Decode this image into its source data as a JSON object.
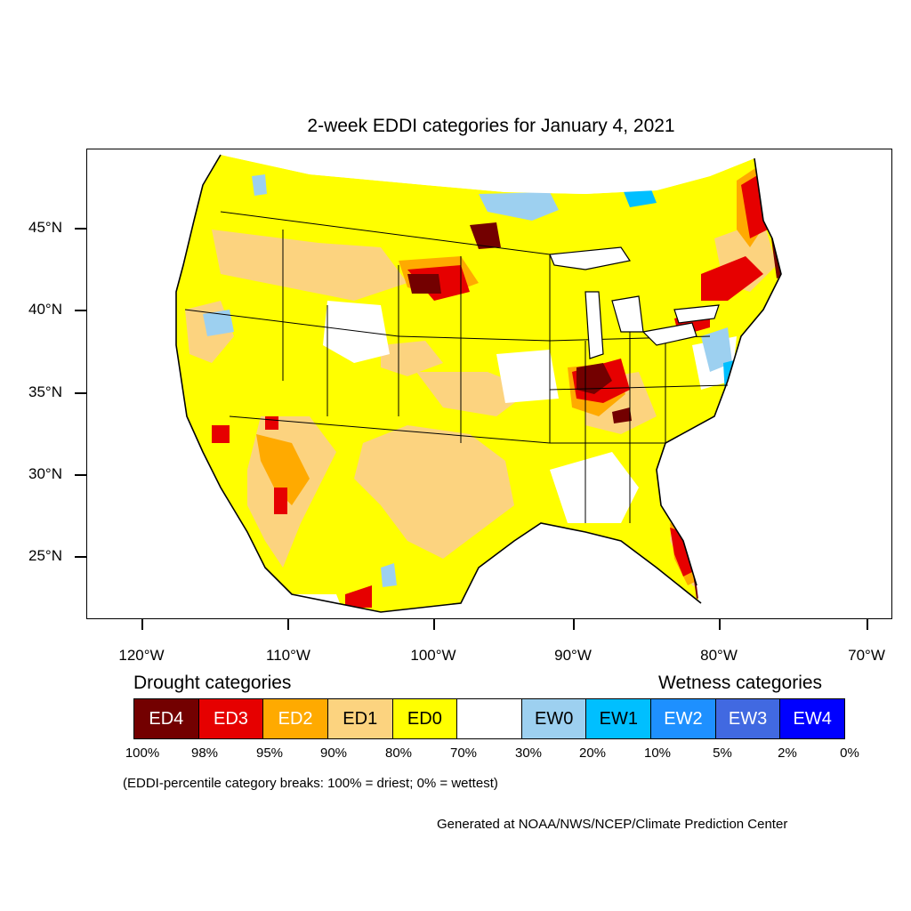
{
  "title": "2-week EDDI categories for January 4, 2021",
  "lat_labels": [
    "45°N",
    "40°N",
    "35°N",
    "30°N",
    "25°N"
  ],
  "lon_labels": [
    "120°W",
    "110°W",
    "100°W",
    "90°W",
    "80°W",
    "70°W"
  ],
  "legend": {
    "drought_title": "Drought categories",
    "wetness_title": "Wetness categories",
    "categories": [
      {
        "label": "ED4",
        "color": "#730000",
        "text_color": "#ffffff"
      },
      {
        "label": "ED3",
        "color": "#e60000",
        "text_color": "#ffffff"
      },
      {
        "label": "ED2",
        "color": "#ffaa00",
        "text_color": "#ffffff"
      },
      {
        "label": "ED1",
        "color": "#fcd37f",
        "text_color": "#000000"
      },
      {
        "label": "ED0",
        "color": "#ffff00",
        "text_color": "#000000"
      },
      {
        "label": "",
        "color": "#ffffff",
        "text_color": "#000000"
      },
      {
        "label": "EW0",
        "color": "#9dd0f0",
        "text_color": "#000000"
      },
      {
        "label": "EW1",
        "color": "#00bfff",
        "text_color": "#000000"
      },
      {
        "label": "EW2",
        "color": "#1e90ff",
        "text_color": "#ffffff"
      },
      {
        "label": "EW3",
        "color": "#4169e1",
        "text_color": "#ffffff"
      },
      {
        "label": "EW4",
        "color": "#0000ff",
        "text_color": "#ffffff"
      }
    ],
    "breaks": [
      "100%",
      "98%",
      "95%",
      "90%",
      "80%",
      "70%",
      "30%",
      "20%",
      "10%",
      "5%",
      "2%",
      "0%"
    ]
  },
  "note": "(EDDI-percentile category breaks: 100% = driest; 0% = wettest)",
  "credit": "Generated at NOAA/NWS/NCEP/Climate Prediction Center"
}
